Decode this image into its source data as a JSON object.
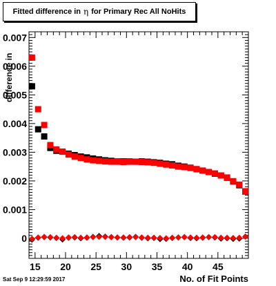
{
  "title": {
    "prefix": "Fitted difference in",
    "symbol": "η",
    "suffix": "for Primary Rec All NoHits"
  },
  "timestamp": "Sat Sep  9 12:29:59 2017",
  "chart_data": {
    "type": "scatter",
    "title": "Fitted difference in η for Primary Rec All NoHits",
    "xlabel": "No. of Fit Points",
    "ylabel": "difference in",
    "xlim": [
      14,
      50
    ],
    "ylim": [
      -0.0007,
      0.0072
    ],
    "x_ticks": [
      "15",
      "20",
      "25",
      "30",
      "35",
      "40",
      "45"
    ],
    "y_ticks": [
      "0",
      "0.001",
      "0.002",
      "0.003",
      "0.004",
      "0.005",
      "0.006",
      "0.007"
    ],
    "x_ticks_values": [
      15,
      20,
      25,
      30,
      35,
      40,
      45
    ],
    "y_ticks_values": [
      0,
      0.001,
      0.002,
      0.003,
      0.004,
      0.005,
      0.006,
      0.007
    ],
    "grid": false,
    "series": [
      {
        "color": "#000000",
        "marker": "square",
        "x": [
          14.5,
          15.5,
          16.5,
          17.5,
          18.5,
          19.5,
          20.5,
          21.5,
          22.5,
          23.5,
          24.5,
          25.5,
          26.5,
          27.5,
          28.5,
          29.5,
          30.5,
          31.5,
          32.5,
          33.5,
          34.5,
          35.5,
          36.5,
          37.5,
          38.5,
          39.5,
          40.5,
          41.5,
          42.5,
          43.5,
          44.5,
          45.5,
          46.5,
          47.5,
          48.5,
          49.5
        ],
        "values": [
          0.0053,
          0.0038,
          0.00355,
          0.00315,
          0.00305,
          0.00302,
          0.00295,
          0.0029,
          0.00285,
          0.00282,
          0.00278,
          0.00275,
          0.00272,
          0.0027,
          0.00268,
          0.00268,
          0.00268,
          0.00267,
          0.00268,
          0.00267,
          0.00265,
          0.00263,
          0.0026,
          0.00258,
          0.00253,
          0.0025,
          0.00246,
          0.00241,
          0.00236,
          0.00231,
          0.00225,
          0.00219,
          0.00211,
          0.00198,
          0.00185,
          0.00163
        ]
      },
      {
        "color": "#ff0000",
        "marker": "square",
        "x": [
          14.5,
          15.5,
          16.5,
          17.5,
          18.5,
          19.5,
          20.5,
          21.5,
          22.5,
          23.5,
          24.5,
          25.5,
          26.5,
          27.5,
          28.5,
          29.5,
          30.5,
          31.5,
          32.5,
          33.5,
          34.5,
          35.5,
          36.5,
          37.5,
          38.5,
          39.5,
          40.5,
          41.5,
          42.5,
          43.5,
          44.5,
          45.5,
          46.5,
          47.5,
          48.5,
          49.5
        ],
        "values": [
          0.0063,
          0.0045,
          0.00395,
          0.00325,
          0.0031,
          0.00302,
          0.00292,
          0.00285,
          0.0028,
          0.00275,
          0.00272,
          0.0027,
          0.00268,
          0.00267,
          0.00267,
          0.00266,
          0.00267,
          0.00267,
          0.00266,
          0.00265,
          0.00263,
          0.0026,
          0.00257,
          0.00254,
          0.0025,
          0.00248,
          0.00245,
          0.00241,
          0.00236,
          0.00231,
          0.00226,
          0.00219,
          0.00212,
          0.00199,
          0.00187,
          0.00164
        ]
      },
      {
        "color": "#000000",
        "marker": "diamond",
        "x": [
          14.5,
          15.5,
          16.5,
          17.5,
          18.5,
          19.5,
          20.5,
          21.5,
          22.5,
          23.5,
          24.5,
          25.5,
          26.5,
          27.5,
          28.5,
          29.5,
          30.5,
          31.5,
          32.5,
          33.5,
          34.5,
          35.5,
          36.5,
          37.5,
          38.5,
          39.5,
          40.5,
          41.5,
          42.5,
          43.5,
          44.5,
          45.5,
          46.5,
          47.5,
          48.5,
          49.5
        ],
        "values": [
          -5e-05,
          2e-05,
          4e-05,
          3e-05,
          1e-05,
          -4e-05,
          2e-05,
          3e-05,
          0.0,
          2e-05,
          5e-05,
          8e-05,
          6e-05,
          4e-05,
          3e-05,
          2e-05,
          3e-05,
          5e-05,
          2e-05,
          0.0,
          1e-05,
          -3e-05,
          -2e-05,
          1e-05,
          3e-05,
          4e-05,
          1e-05,
          0.0,
          2e-05,
          4e-05,
          3e-05,
          -1e-05,
          0.0,
          -2e-05,
          -1e-05,
          6e-05
        ]
      },
      {
        "color": "#ff0000",
        "marker": "diamond",
        "x": [
          14.5,
          15.5,
          16.5,
          17.5,
          18.5,
          19.5,
          20.5,
          21.5,
          22.5,
          23.5,
          24.5,
          25.5,
          26.5,
          27.5,
          28.5,
          29.5,
          30.5,
          31.5,
          32.5,
          33.5,
          34.5,
          35.5,
          36.5,
          37.5,
          38.5,
          39.5,
          40.5,
          41.5,
          42.5,
          43.5,
          44.5,
          45.5,
          46.5,
          47.5,
          48.5,
          49.5
        ],
        "values": [
          -2e-05,
          3e-05,
          5e-05,
          4e-05,
          2e-05,
          0.0,
          3e-05,
          4e-05,
          2e-05,
          3e-05,
          4e-05,
          5e-05,
          5e-05,
          4e-05,
          3e-05,
          3e-05,
          4e-05,
          4e-05,
          3e-05,
          2e-05,
          2e-05,
          1e-05,
          0.0,
          2e-05,
          3e-05,
          4e-05,
          3e-05,
          2e-05,
          3e-05,
          4e-05,
          4e-05,
          2e-05,
          2e-05,
          1e-05,
          2e-05,
          6e-05
        ]
      }
    ]
  }
}
